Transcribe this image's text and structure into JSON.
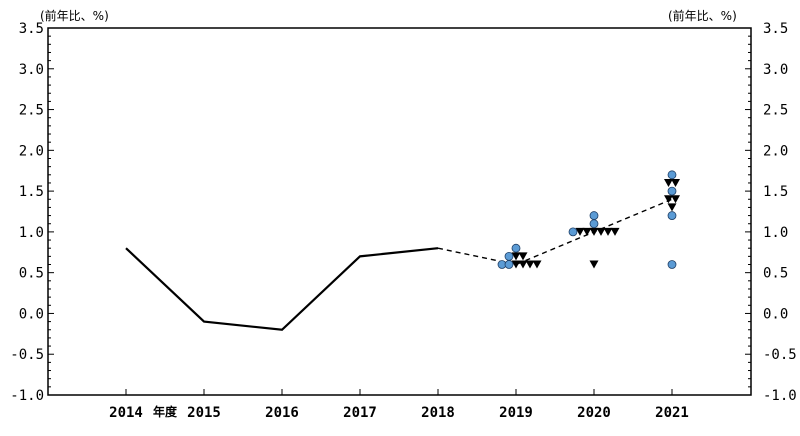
{
  "chart_data": {
    "type": "line",
    "y_unit_left": "(前年比、%)",
    "y_unit_right": "(前年比、%)",
    "x_unit": "年度",
    "x_categories": [
      "2014",
      "2015",
      "2016",
      "2017",
      "2018",
      "2019",
      "2020",
      "2021"
    ],
    "ylim": [
      -1.0,
      3.5
    ],
    "yticks": [
      "3.5",
      "3.0",
      "2.5",
      "2.0",
      "1.5",
      "1.0",
      "0.5",
      "0.0",
      "-0.5",
      "-1.0"
    ],
    "grid": false,
    "series": [
      {
        "style": "solid",
        "x": [
          "2014",
          "2015",
          "2016",
          "2017",
          "2018"
        ],
        "y": [
          0.8,
          -0.1,
          -0.2,
          0.7,
          0.8
        ]
      },
      {
        "style": "dashed",
        "x": [
          "2018",
          "2019",
          "2020",
          "2021"
        ],
        "y": [
          0.8,
          0.6,
          1.0,
          1.4
        ]
      }
    ],
    "scatter_circles": [
      {
        "x": "2019",
        "y": 0.6,
        "offset": -2
      },
      {
        "x": "2019",
        "y": 0.6,
        "offset": -1
      },
      {
        "x": "2019",
        "y": 0.7,
        "offset": -1
      },
      {
        "x": "2019",
        "y": 0.8,
        "offset": 0
      },
      {
        "x": "2020",
        "y": 1.0,
        "offset": -3
      },
      {
        "x": "2020",
        "y": 1.1,
        "offset": 0
      },
      {
        "x": "2020",
        "y": 1.2,
        "offset": 0
      },
      {
        "x": "2021",
        "y": 1.7,
        "offset": 0
      },
      {
        "x": "2021",
        "y": 1.5,
        "offset": 0
      },
      {
        "x": "2021",
        "y": 1.2,
        "offset": 0
      },
      {
        "x": "2021",
        "y": 0.6,
        "offset": 0
      }
    ],
    "scatter_triangles": [
      {
        "x": "2019",
        "y": 0.7,
        "offset": 0
      },
      {
        "x": "2019",
        "y": 0.7,
        "offset": 1
      },
      {
        "x": "2019",
        "y": 0.6,
        "offset": 0
      },
      {
        "x": "2019",
        "y": 0.6,
        "offset": 1
      },
      {
        "x": "2019",
        "y": 0.6,
        "offset": 2
      },
      {
        "x": "2019",
        "y": 0.6,
        "offset": 3
      },
      {
        "x": "2020",
        "y": 1.0,
        "offset": -2
      },
      {
        "x": "2020",
        "y": 1.0,
        "offset": -1
      },
      {
        "x": "2020",
        "y": 1.0,
        "offset": 0
      },
      {
        "x": "2020",
        "y": 1.0,
        "offset": 1
      },
      {
        "x": "2020",
        "y": 1.0,
        "offset": 2
      },
      {
        "x": "2020",
        "y": 1.0,
        "offset": 3
      },
      {
        "x": "2020",
        "y": 0.6,
        "offset": 0
      },
      {
        "x": "2021",
        "y": 1.6,
        "offset": -0.5
      },
      {
        "x": "2021",
        "y": 1.6,
        "offset": 0.5
      },
      {
        "x": "2021",
        "y": 1.4,
        "offset": -0.5
      },
      {
        "x": "2021",
        "y": 1.4,
        "offset": 0.5
      },
      {
        "x": "2021",
        "y": 1.3,
        "offset": 0
      }
    ],
    "colors": {
      "line": "#000000",
      "circle_fill": "#5b9bd5",
      "circle_stroke": "#1f3f66",
      "triangle": "#000000"
    }
  }
}
